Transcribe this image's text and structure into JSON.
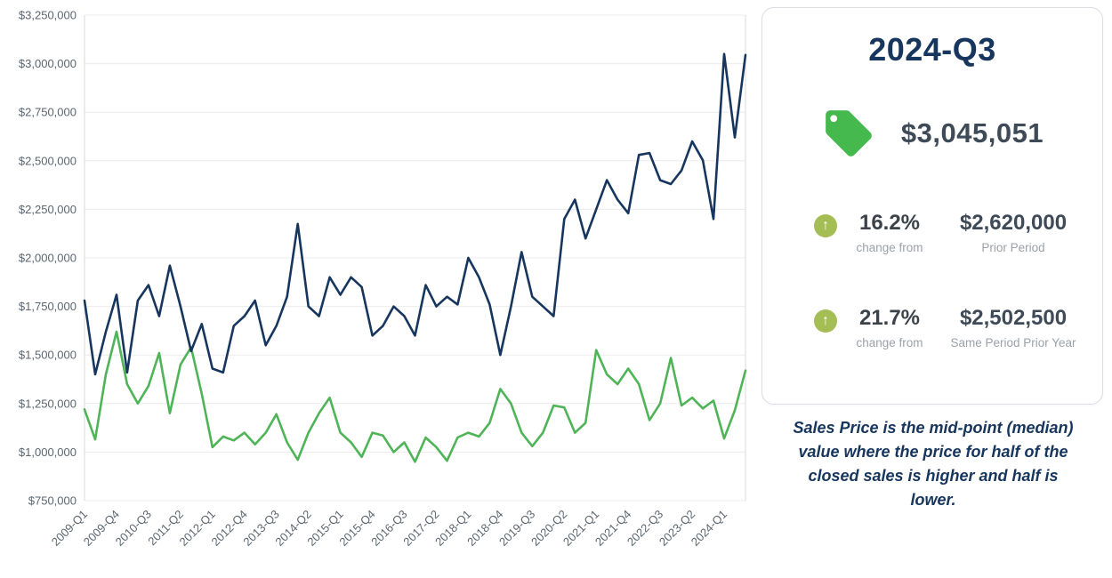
{
  "panel": {
    "title": "2024-Q3",
    "current_value": "$3,045,051",
    "stats": [
      {
        "percent": "16.2%",
        "caption": "change from",
        "value": "$2,620,000",
        "label": "Prior Period"
      },
      {
        "percent": "21.7%",
        "caption": "change from",
        "value": "$2,502,500",
        "label": "Same Period Prior Year"
      }
    ],
    "note": "Sales Price is the mid-point (median) value where the price for half of the closed sales is higher and half is lower."
  },
  "icons": {
    "arrow_up_glyph": "↑"
  },
  "colors": {
    "navy": "#17365D",
    "line_green": "#4FB457",
    "tag_green": "#45B94E",
    "arrow_green": "#A4BE55",
    "grid": "#ECECEC",
    "axis_line": "#D9D9D9",
    "tick_text": "#5B6670",
    "value_text": "#3E4A57",
    "caption_gray": "#9AA1A9"
  },
  "chart_data": {
    "type": "line",
    "title": "",
    "xlabel": "",
    "ylabel": "",
    "grid": true,
    "legend": "none",
    "ylim": [
      750000,
      3250000
    ],
    "y_ticks": [
      750000,
      1000000,
      1250000,
      1500000,
      1750000,
      2000000,
      2250000,
      2500000,
      2750000,
      3000000,
      3250000
    ],
    "x_tick_step": 3,
    "x": [
      "2009-Q1",
      "2009-Q2",
      "2009-Q3",
      "2009-Q4",
      "2010-Q1",
      "2010-Q2",
      "2010-Q3",
      "2010-Q4",
      "2011-Q1",
      "2011-Q2",
      "2011-Q3",
      "2011-Q4",
      "2012-Q1",
      "2012-Q2",
      "2012-Q3",
      "2012-Q4",
      "2013-Q1",
      "2013-Q2",
      "2013-Q3",
      "2013-Q4",
      "2014-Q1",
      "2014-Q2",
      "2014-Q3",
      "2014-Q4",
      "2015-Q1",
      "2015-Q2",
      "2015-Q3",
      "2015-Q4",
      "2016-Q1",
      "2016-Q2",
      "2016-Q3",
      "2016-Q4",
      "2017-Q1",
      "2017-Q2",
      "2017-Q3",
      "2017-Q4",
      "2018-Q1",
      "2018-Q2",
      "2018-Q3",
      "2018-Q4",
      "2019-Q1",
      "2019-Q2",
      "2019-Q3",
      "2019-Q4",
      "2020-Q1",
      "2020-Q2",
      "2020-Q3",
      "2020-Q4",
      "2021-Q1",
      "2021-Q2",
      "2021-Q3",
      "2021-Q4",
      "2022-Q1",
      "2022-Q2",
      "2022-Q3",
      "2022-Q4",
      "2023-Q1",
      "2023-Q2",
      "2023-Q3",
      "2023-Q4",
      "2024-Q1",
      "2024-Q2",
      "2024-Q3"
    ],
    "series": [
      {
        "name": "navy",
        "color": "#17365D",
        "values": [
          1780000,
          1400000,
          1620000,
          1810000,
          1410000,
          1780000,
          1860000,
          1700000,
          1960000,
          1750000,
          1520000,
          1660000,
          1430000,
          1410000,
          1650000,
          1700000,
          1780000,
          1550000,
          1650000,
          1800000,
          2175000,
          1750000,
          1700000,
          1900000,
          1810000,
          1900000,
          1850000,
          1600000,
          1650000,
          1750000,
          1700000,
          1600000,
          1860000,
          1750000,
          1800000,
          1760000,
          2000000,
          1900000,
          1760000,
          1500000,
          1750000,
          2030000,
          1800000,
          1750000,
          1700000,
          2200000,
          2300000,
          2100000,
          2250000,
          2400000,
          2300000,
          2230000,
          2530000,
          2540000,
          2400000,
          2380000,
          2450000,
          2600000,
          2502500,
          2200000,
          3050000,
          2620000,
          3045051
        ]
      },
      {
        "name": "green",
        "color": "#4FB457",
        "values": [
          1220000,
          1065000,
          1400000,
          1620000,
          1350000,
          1250000,
          1340000,
          1510000,
          1200000,
          1450000,
          1540000,
          1300000,
          1025000,
          1080000,
          1060000,
          1100000,
          1040000,
          1100000,
          1195000,
          1050000,
          960000,
          1100000,
          1200000,
          1280000,
          1100000,
          1050000,
          975000,
          1100000,
          1085000,
          1000000,
          1050000,
          950000,
          1075000,
          1025000,
          955000,
          1075000,
          1100000,
          1080000,
          1150000,
          1325000,
          1250000,
          1100000,
          1030000,
          1100000,
          1240000,
          1230000,
          1100000,
          1150000,
          1525000,
          1400000,
          1350000,
          1430000,
          1350000,
          1165000,
          1250000,
          1485000,
          1240000,
          1280000,
          1225000,
          1265000,
          1070000,
          1215000,
          1420000
        ]
      }
    ]
  }
}
